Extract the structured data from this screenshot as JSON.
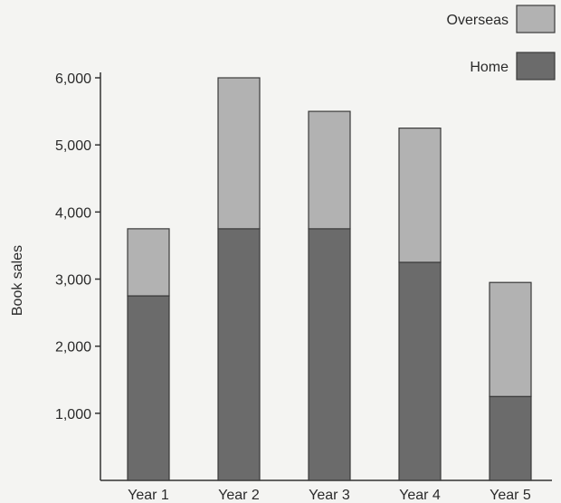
{
  "chart_data": {
    "type": "bar",
    "stacked": true,
    "categories": [
      "Year 1",
      "Year 2",
      "Year 3",
      "Year 4",
      "Year 5"
    ],
    "series": [
      {
        "name": "Home",
        "values": [
          2750,
          3750,
          3750,
          3250,
          1250
        ]
      },
      {
        "name": "Overseas",
        "values": [
          1000,
          2250,
          1750,
          2000,
          1700
        ]
      }
    ],
    "title": "",
    "xlabel": "",
    "ylabel": "Book sales",
    "ylim": [
      0,
      6000
    ],
    "yticks": [
      1000,
      2000,
      3000,
      4000,
      5000,
      6000
    ],
    "ytick_labels": [
      "1,000",
      "2,000",
      "3,000",
      "4,000",
      "5,000",
      "6,000"
    ],
    "grid": false,
    "legend_position": "top-right",
    "colors": {
      "Home": "#6b6b6b",
      "Overseas": "#b2b2b2"
    }
  }
}
